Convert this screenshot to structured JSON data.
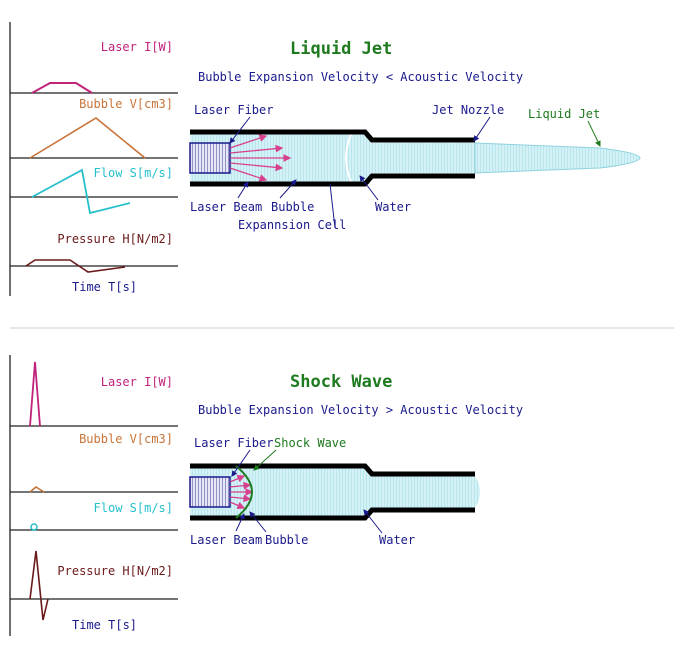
{
  "colors": {
    "laser": "#c0237a",
    "bubble": "#c8743a",
    "flow": "#25c0cc",
    "pressure": "#6b1a1a",
    "time": "#1a1a8c",
    "title": "#1e7a1e",
    "subtitle": "#1a1a8c",
    "callout": "#1a1a8c",
    "water": "#bfe9f0",
    "beam": "#d6408c"
  },
  "panels": [
    {
      "title": "Liquid Jet",
      "subtitle": "Bubble Expansion Velocity < Acoustic Velocity",
      "graph_labels": {
        "laser": "Laser I[W]",
        "bubble": "Bubble V[cm3]",
        "flow": "Flow S[m/s]",
        "pressure": "Pressure H[N/m2]",
        "time": "Time T[s]"
      },
      "callouts": {
        "laser_fiber": "Laser Fiber",
        "jet_nozzle": "Jet Nozzle",
        "liquid_jet": "Liquid Jet",
        "laser_beam": "Laser Beam",
        "bubble": "Bubble",
        "expansion_cell": "Expannsion Cell",
        "water": "Water"
      }
    },
    {
      "title": "Shock Wave",
      "subtitle": "Bubble Expansion Velocity > Acoustic Velocity",
      "graph_labels": {
        "laser": "Laser I[W]",
        "bubble": "Bubble V[cm3]",
        "flow": "Flow S[m/s]",
        "pressure": "Pressure H[N/m2]",
        "time": "Time T[s]"
      },
      "callouts": {
        "laser_fiber": "Laser Fiber",
        "shock_wave": "Shock Wave",
        "laser_beam": "Laser Beam",
        "bubble": "Bubble",
        "water": "Water"
      }
    }
  ]
}
